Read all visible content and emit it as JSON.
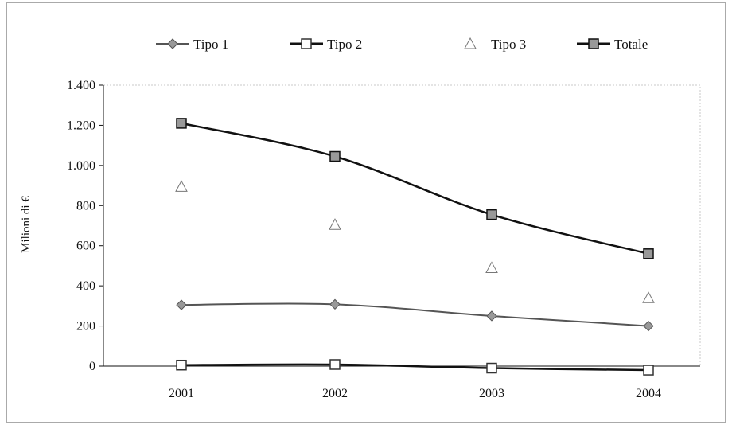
{
  "chart_data": {
    "type": "line",
    "title": "",
    "xlabel": "",
    "ylabel": "Milioni di €",
    "categories": [
      "2001",
      "2002",
      "2003",
      "2004"
    ],
    "ylim": [
      0,
      1400
    ],
    "yticks": [
      0,
      200,
      400,
      600,
      800,
      1000,
      1200,
      1400
    ],
    "ytick_labels": [
      "0",
      "200",
      "400",
      "600",
      "800",
      "1.000",
      "1.200",
      "1.400"
    ],
    "grid": false,
    "legend_position": "top",
    "series": [
      {
        "name": "Tipo 1",
        "values": [
          305,
          308,
          250,
          200
        ],
        "marker": "diamond",
        "line": true,
        "color": "#999999",
        "line_color": "#555555"
      },
      {
        "name": "Tipo 2",
        "values": [
          5,
          8,
          -10,
          -20
        ],
        "marker": "square-open",
        "line": true,
        "color": "#ffffff",
        "line_color": "#111111"
      },
      {
        "name": "Tipo 3",
        "values": [
          895,
          705,
          490,
          340
        ],
        "marker": "triangle-open",
        "line": false,
        "color": "#ffffff",
        "line_color": "#777777"
      },
      {
        "name": "Totale",
        "values": [
          1210,
          1045,
          755,
          560
        ],
        "marker": "square-filled",
        "line": true,
        "color": "#999999",
        "line_color": "#111111"
      }
    ]
  }
}
